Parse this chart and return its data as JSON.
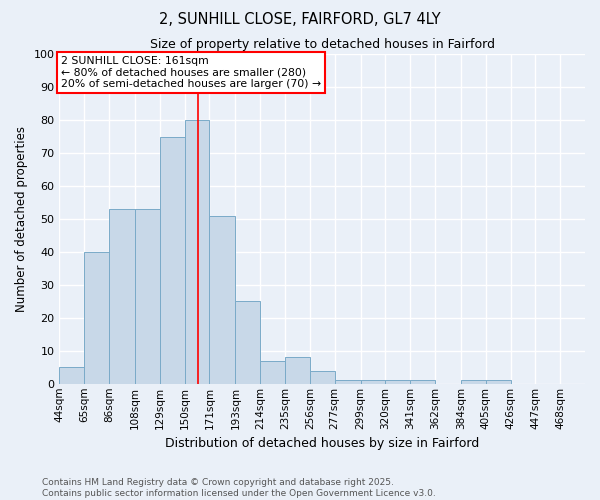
{
  "title1": "2, SUNHILL CLOSE, FAIRFORD, GL7 4LY",
  "title2": "Size of property relative to detached houses in Fairford",
  "xlabel": "Distribution of detached houses by size in Fairford",
  "ylabel": "Number of detached properties",
  "bins": [
    44,
    65,
    86,
    108,
    129,
    150,
    171,
    193,
    214,
    235,
    256,
    277,
    299,
    320,
    341,
    362,
    384,
    405,
    426,
    447,
    468
  ],
  "counts": [
    5,
    40,
    53,
    53,
    75,
    80,
    51,
    25,
    7,
    8,
    4,
    1,
    1,
    1,
    1,
    0,
    1,
    1,
    0,
    0,
    0
  ],
  "bar_color": "#c8d8e8",
  "bar_edge_color": "#7aaac8",
  "red_line_x": 161,
  "annotation_text": "2 SUNHILL CLOSE: 161sqm\n← 80% of detached houses are smaller (280)\n20% of semi-detached houses are larger (70) →",
  "annotation_box_facecolor": "white",
  "annotation_box_edgecolor": "red",
  "ylim": [
    0,
    100
  ],
  "yticks": [
    0,
    10,
    20,
    30,
    40,
    50,
    60,
    70,
    80,
    90,
    100
  ],
  "background_color": "#eaf0f8",
  "grid_color": "white",
  "footnote1": "Contains HM Land Registry data © Crown copyright and database right 2025.",
  "footnote2": "Contains public sector information licensed under the Open Government Licence v3.0."
}
